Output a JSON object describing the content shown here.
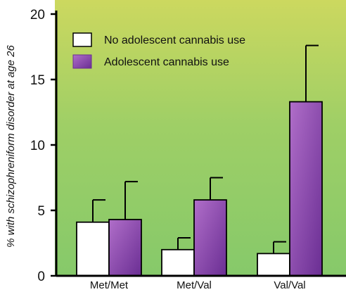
{
  "chart_data": {
    "type": "bar",
    "title": "",
    "xlabel": "",
    "ylabel": "% with schizophreniform disorder at age 26",
    "categories": [
      "Met/Met",
      "Met/Val",
      "Val/Val"
    ],
    "series": [
      {
        "name": "No adolescent cannabis use",
        "values": [
          4.1,
          2.0,
          1.7
        ],
        "error": [
          1.7,
          0.9,
          0.9
        ],
        "color": "#ffffff"
      },
      {
        "name": "Adolescent cannabis use",
        "values": [
          4.3,
          5.8,
          13.3
        ],
        "error": [
          2.9,
          1.7,
          4.3
        ],
        "color": "#8e4fb0"
      }
    ],
    "ylim": [
      0,
      20
    ],
    "yticks": [
      0,
      5,
      10,
      15,
      20
    ],
    "grid": false,
    "legend_position": "top-left",
    "background_gradient": [
      "#ccd85f",
      "#9fcf66",
      "#86c96a"
    ]
  }
}
